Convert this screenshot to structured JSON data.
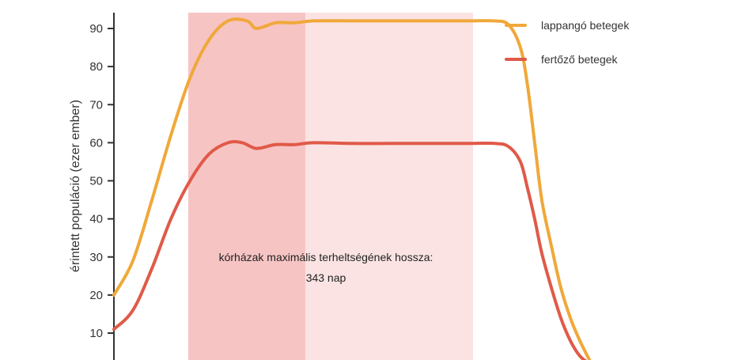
{
  "chart_data": {
    "type": "line",
    "title": "",
    "xlabel": "",
    "ylabel": "érintett populáció (ezer ember)",
    "ylim": [
      2,
      94
    ],
    "y_ticks": [
      10,
      20,
      30,
      40,
      50,
      60,
      70,
      80,
      90
    ],
    "legend_position": "top-right",
    "colors": {
      "incubating": "#f0a83a",
      "infectious": "#e05a48",
      "band_dark": "#f7c4c4",
      "band_light": "#fbe3e3",
      "axis": "#333333"
    },
    "annotation": {
      "line1": "kórházak maximális terheltségének hossza:",
      "line2": "343 nap"
    },
    "series": [
      {
        "name": "lappangó betegek",
        "key": "incubating",
        "values": [
          [
            0,
            20
          ],
          [
            0.04,
            29
          ],
          [
            0.08,
            45
          ],
          [
            0.12,
            62
          ],
          [
            0.16,
            77
          ],
          [
            0.2,
            87
          ],
          [
            0.24,
            92
          ],
          [
            0.28,
            92
          ],
          [
            0.3,
            90
          ],
          [
            0.34,
            91.5
          ],
          [
            0.38,
            91.5
          ],
          [
            0.42,
            92
          ],
          [
            0.5,
            92
          ],
          [
            0.58,
            92
          ],
          [
            0.66,
            92
          ],
          [
            0.74,
            92
          ],
          [
            0.8,
            92
          ],
          [
            0.83,
            91
          ],
          [
            0.855,
            85
          ],
          [
            0.87,
            75
          ],
          [
            0.885,
            60
          ],
          [
            0.9,
            45
          ],
          [
            0.92,
            33
          ],
          [
            0.94,
            22
          ],
          [
            0.96,
            14
          ],
          [
            0.98,
            8
          ],
          [
            1,
            3
          ]
        ]
      },
      {
        "name": "fertőző betegek",
        "key": "infectious",
        "values": [
          [
            0,
            11
          ],
          [
            0.04,
            16
          ],
          [
            0.08,
            27
          ],
          [
            0.12,
            40
          ],
          [
            0.16,
            50
          ],
          [
            0.2,
            57
          ],
          [
            0.24,
            60
          ],
          [
            0.27,
            60
          ],
          [
            0.3,
            58.5
          ],
          [
            0.34,
            59.5
          ],
          [
            0.38,
            59.5
          ],
          [
            0.42,
            60
          ],
          [
            0.5,
            59.8
          ],
          [
            0.58,
            59.8
          ],
          [
            0.66,
            59.8
          ],
          [
            0.74,
            59.8
          ],
          [
            0.8,
            59.8
          ],
          [
            0.83,
            59
          ],
          [
            0.855,
            55
          ],
          [
            0.87,
            48
          ],
          [
            0.885,
            40
          ],
          [
            0.9,
            31
          ],
          [
            0.92,
            22
          ],
          [
            0.94,
            14
          ],
          [
            0.96,
            8
          ],
          [
            0.98,
            4
          ],
          [
            1,
            2
          ]
        ]
      }
    ]
  }
}
